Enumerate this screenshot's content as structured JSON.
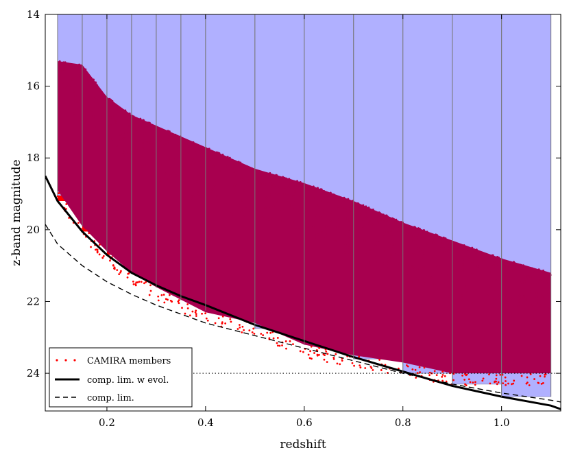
{
  "chart_data": {
    "type": "scatter",
    "title": "",
    "xlabel": "redshift",
    "ylabel": "z-band magnitude",
    "xlim": [
      0.075,
      1.12
    ],
    "ylim": [
      25.05,
      14.0
    ],
    "y_inverted": true,
    "xticks": [
      0.2,
      0.4,
      0.6,
      0.8,
      1.0
    ],
    "xtick_labels": [
      "0.2",
      "0.4",
      "0.6",
      "0.8",
      "1.0"
    ],
    "yticks": [
      14,
      16,
      18,
      20,
      22,
      24
    ],
    "ytick_labels": [
      "14",
      "16",
      "18",
      "20",
      "22",
      "24"
    ],
    "legend": {
      "position": "bottom-left",
      "entries": [
        {
          "label": "CAMIRA members",
          "style": "red-dots"
        },
        {
          "label": "comp. lim. w evol.",
          "style": "solid-thick"
        },
        {
          "label": "comp. lim.",
          "style": "dashed"
        }
      ]
    },
    "bins": [
      {
        "z_lo": 0.1,
        "z_hi": 0.15,
        "mag_lim": 19.05
      },
      {
        "z_lo": 0.15,
        "z_hi": 0.2,
        "mag_lim": 19.9
      },
      {
        "z_lo": 0.2,
        "z_hi": 0.25,
        "mag_lim": 20.6
      },
      {
        "z_lo": 0.25,
        "z_hi": 0.3,
        "mag_lim": 21.15
      },
      {
        "z_lo": 0.3,
        "z_hi": 0.35,
        "mag_lim": 21.6
      },
      {
        "z_lo": 0.35,
        "z_hi": 0.4,
        "mag_lim": 21.95
      },
      {
        "z_lo": 0.4,
        "z_hi": 0.5,
        "mag_lim": 22.25
      },
      {
        "z_lo": 0.5,
        "z_hi": 0.6,
        "mag_lim": 22.75
      },
      {
        "z_lo": 0.6,
        "z_hi": 0.7,
        "mag_lim": 23.2
      },
      {
        "z_lo": 0.7,
        "z_hi": 0.8,
        "mag_lim": 23.6
      },
      {
        "z_lo": 0.8,
        "z_hi": 0.9,
        "mag_lim": 24.0
      },
      {
        "z_lo": 0.9,
        "z_hi": 1.0,
        "mag_lim": 24.3
      },
      {
        "z_lo": 1.0,
        "z_hi": 1.1,
        "mag_lim": 24.65
      }
    ],
    "members_envelope": {
      "z": [
        0.1,
        0.15,
        0.2,
        0.25,
        0.3,
        0.4,
        0.5,
        0.6,
        0.7,
        0.8,
        0.9,
        1.0,
        1.1
      ],
      "bright_edge": [
        15.3,
        15.4,
        16.3,
        16.8,
        17.1,
        17.7,
        18.3,
        18.7,
        19.2,
        19.8,
        20.3,
        20.8,
        21.2
      ],
      "faint_edge": [
        18.9,
        19.9,
        20.6,
        21.2,
        21.6,
        22.3,
        22.6,
        23.2,
        23.5,
        23.7,
        24.0,
        24.0,
        24.0
      ]
    },
    "series": [
      {
        "name": "comp. lim. w evol.",
        "style": "solid",
        "z": [
          0.075,
          0.1,
          0.15,
          0.2,
          0.25,
          0.3,
          0.35,
          0.4,
          0.5,
          0.6,
          0.7,
          0.8,
          0.9,
          1.0,
          1.1,
          1.12
        ],
        "mag": [
          18.5,
          19.2,
          20.05,
          20.7,
          21.2,
          21.55,
          21.85,
          22.1,
          22.65,
          23.1,
          23.55,
          23.95,
          24.35,
          24.65,
          24.9,
          25.0
        ]
      },
      {
        "name": "comp. lim.",
        "style": "dashed",
        "z": [
          0.075,
          0.1,
          0.15,
          0.2,
          0.25,
          0.3,
          0.35,
          0.4,
          0.5,
          0.6,
          0.7,
          0.8,
          0.9,
          1.0,
          1.1,
          1.12
        ],
        "mag": [
          19.85,
          20.4,
          21.0,
          21.45,
          21.8,
          22.1,
          22.35,
          22.6,
          22.95,
          23.3,
          23.65,
          24.0,
          24.3,
          24.55,
          24.75,
          24.8
        ]
      },
      {
        "name": "mag 24 reference",
        "style": "dotted",
        "z": [
          0.075,
          1.12
        ],
        "mag": [
          24.0,
          24.0
        ]
      }
    ],
    "colors": {
      "bin_fill": "#b0b0ff",
      "bin_edge": "#777777",
      "members": "#a8004f",
      "members_outlier": "#ff0000",
      "bin_floor_fill": "#ff0000"
    }
  }
}
